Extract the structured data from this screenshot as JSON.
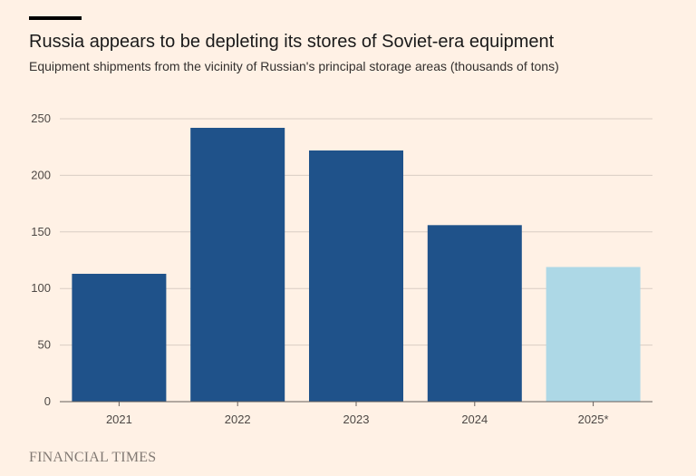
{
  "header": {
    "title": "Russia appears to be depleting its stores of Soviet-era equipment",
    "subtitle": "Equipment shipments from the vicinity of Russian's principal storage areas (thousands of tons)"
  },
  "footer": {
    "brand": "FINANCIAL TIMES"
  },
  "colors": {
    "background": "#fff1e5",
    "bar_actual": "#1f528a",
    "bar_projected": "#add8e6",
    "gridline": "#d9cdc3",
    "axis_line": "#66605c"
  },
  "chart_data": {
    "type": "bar",
    "categories": [
      "2021",
      "2022",
      "2023",
      "2024",
      "2025*"
    ],
    "values": [
      113,
      242,
      222,
      156,
      119
    ],
    "highlight": [
      false,
      false,
      false,
      false,
      true
    ],
    "ylim": [
      0,
      250
    ],
    "yticks": [
      "0",
      "50",
      "100",
      "150",
      "200",
      "250"
    ],
    "ytick_values": [
      0,
      50,
      100,
      150,
      200,
      250
    ],
    "grid": true,
    "legend": "none"
  }
}
